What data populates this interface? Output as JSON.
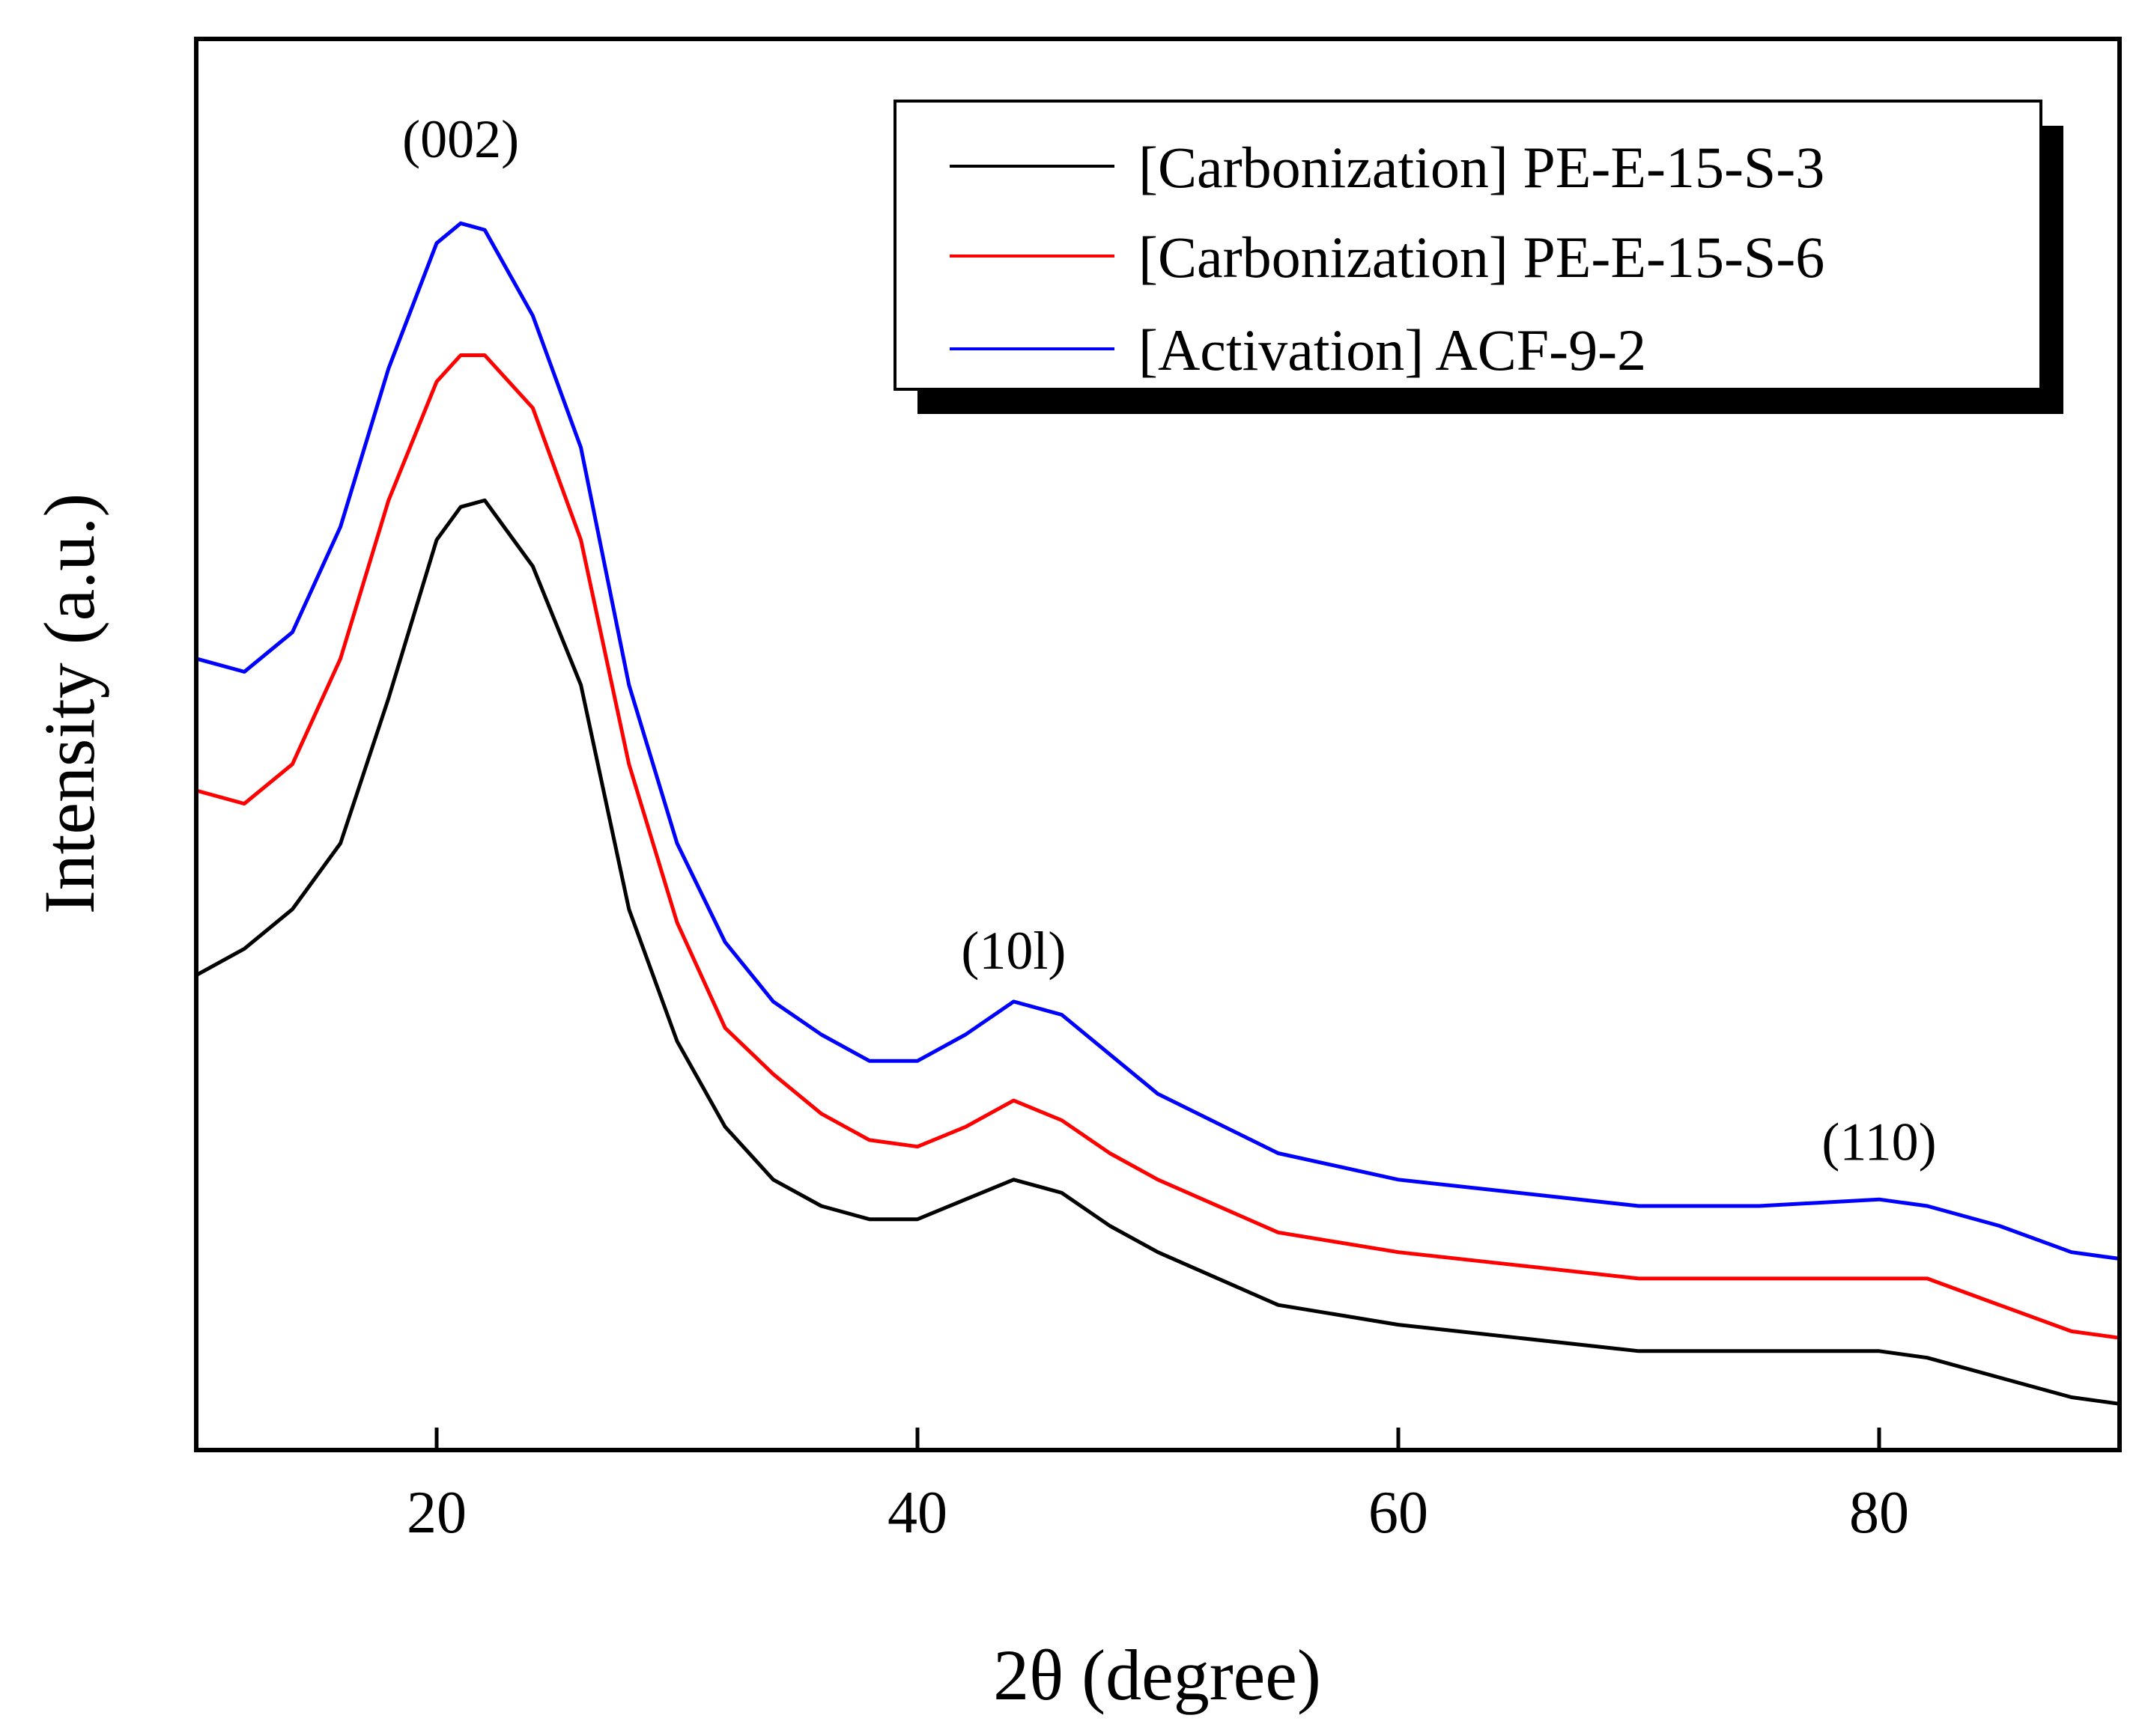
{
  "chart_data": {
    "type": "line",
    "title": "",
    "xlabel": "2θ (degree)",
    "ylabel": "Intensity (a.u.)",
    "xlim": [
      10,
      90
    ],
    "ylim": [
      0,
      100
    ],
    "x_ticks": [
      20,
      40,
      60,
      80
    ],
    "x_tick_labels": [
      "20",
      "40",
      "60",
      "80"
    ],
    "y_ticks_shown": false,
    "grid": false,
    "legend_position": "top-right",
    "peak_labels": [
      {
        "text": "(002)",
        "x": 21,
        "y": 98
      },
      {
        "text": "(10l)",
        "x": 44,
        "y": 36.5
      },
      {
        "text": "(110)",
        "x": 80,
        "y": 22
      }
    ],
    "series": [
      {
        "name": "[Carbonization] PE-E-15-S-3",
        "color": "#000000",
        "x": [
          10,
          12,
          14,
          16,
          18,
          20,
          21,
          22,
          24,
          26,
          28,
          30,
          32,
          34,
          36,
          38,
          40,
          42,
          44,
          46,
          48,
          50,
          55,
          60,
          65,
          70,
          75,
          80,
          82,
          85,
          88,
          90
        ],
        "y": [
          36,
          38,
          41,
          46,
          57,
          69,
          71.5,
          72,
          67,
          58,
          41,
          31,
          24.5,
          20.5,
          18.5,
          17.5,
          17.5,
          19,
          20.5,
          19.5,
          17,
          15,
          11,
          9.5,
          8.5,
          7.5,
          7.5,
          7.5,
          7,
          5.5,
          4,
          3.5
        ]
      },
      {
        "name": "[Carbonization] PE-E-15-S-6",
        "color": "#ff0000",
        "x": [
          10,
          12,
          14,
          16,
          18,
          20,
          21,
          22,
          24,
          26,
          28,
          30,
          32,
          34,
          36,
          38,
          40,
          42,
          44,
          46,
          48,
          50,
          55,
          60,
          65,
          70,
          75,
          80,
          82,
          85,
          88,
          90
        ],
        "y": [
          50,
          49,
          52,
          60,
          72,
          81,
          83,
          83,
          79,
          69,
          52,
          40,
          32,
          28.5,
          25.5,
          23.5,
          23,
          24.5,
          26.5,
          25,
          22.5,
          20.5,
          16.5,
          15,
          14,
          13,
          13,
          13,
          13,
          11,
          9,
          8.5
        ]
      },
      {
        "name": "[Activation] ACF-9-2",
        "color": "#0000ff",
        "x": [
          10,
          12,
          14,
          16,
          18,
          20,
          21,
          22,
          24,
          26,
          28,
          30,
          32,
          34,
          36,
          38,
          40,
          42,
          44,
          46,
          48,
          50,
          55,
          60,
          65,
          70,
          75,
          80,
          82,
          85,
          88,
          90
        ],
        "y": [
          60,
          59,
          62,
          70,
          82,
          91.5,
          93,
          92.5,
          86,
          76,
          58,
          46,
          38.5,
          34,
          31.5,
          29.5,
          29.5,
          31.5,
          34,
          33,
          30,
          27,
          22.5,
          20.5,
          19.5,
          18.5,
          18.5,
          19,
          18.5,
          17,
          15,
          14.5
        ]
      }
    ]
  }
}
